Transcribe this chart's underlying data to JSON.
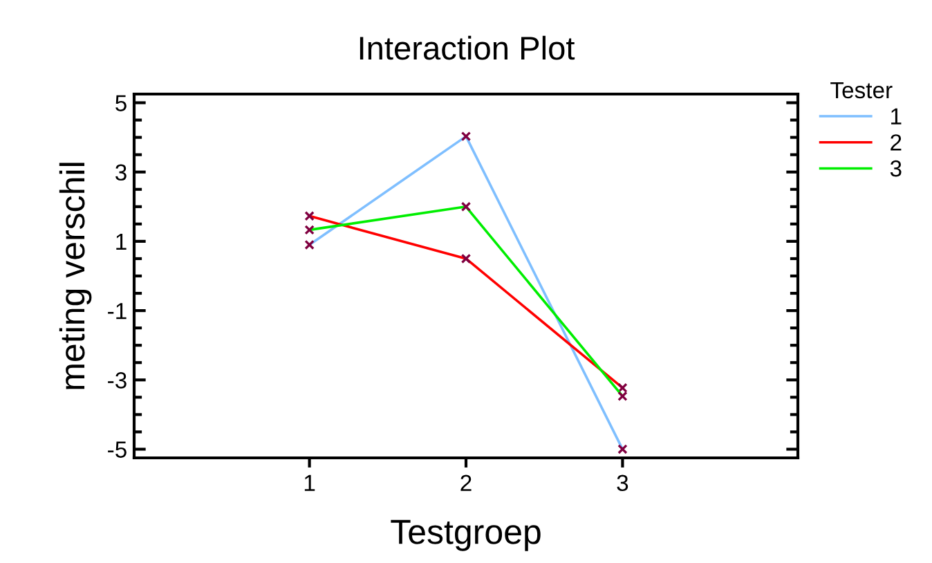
{
  "chart_data": {
    "type": "line",
    "title": "Interaction Plot",
    "xlabel": "Testgroep",
    "ylabel": "meting verschil",
    "legend_title": "Tester",
    "x": [
      1,
      2,
      3
    ],
    "xlim": [
      -0.12,
      4.12
    ],
    "xticks": [
      1,
      2,
      3
    ],
    "ylim": [
      -5.25,
      5.25
    ],
    "yticks": [
      5,
      3,
      1,
      -1,
      -3,
      -5
    ],
    "legend": "top right",
    "grid": false,
    "marker": "cross",
    "series": [
      {
        "name": "1",
        "color": "#7fbfff",
        "values": [
          0.9,
          4.03,
          -5.0
        ]
      },
      {
        "name": "2",
        "color": "#ff0000",
        "values": [
          1.73,
          0.5,
          -3.23
        ]
      },
      {
        "name": "3",
        "color": "#00ee00",
        "values": [
          1.33,
          2.0,
          -3.47
        ]
      }
    ]
  }
}
